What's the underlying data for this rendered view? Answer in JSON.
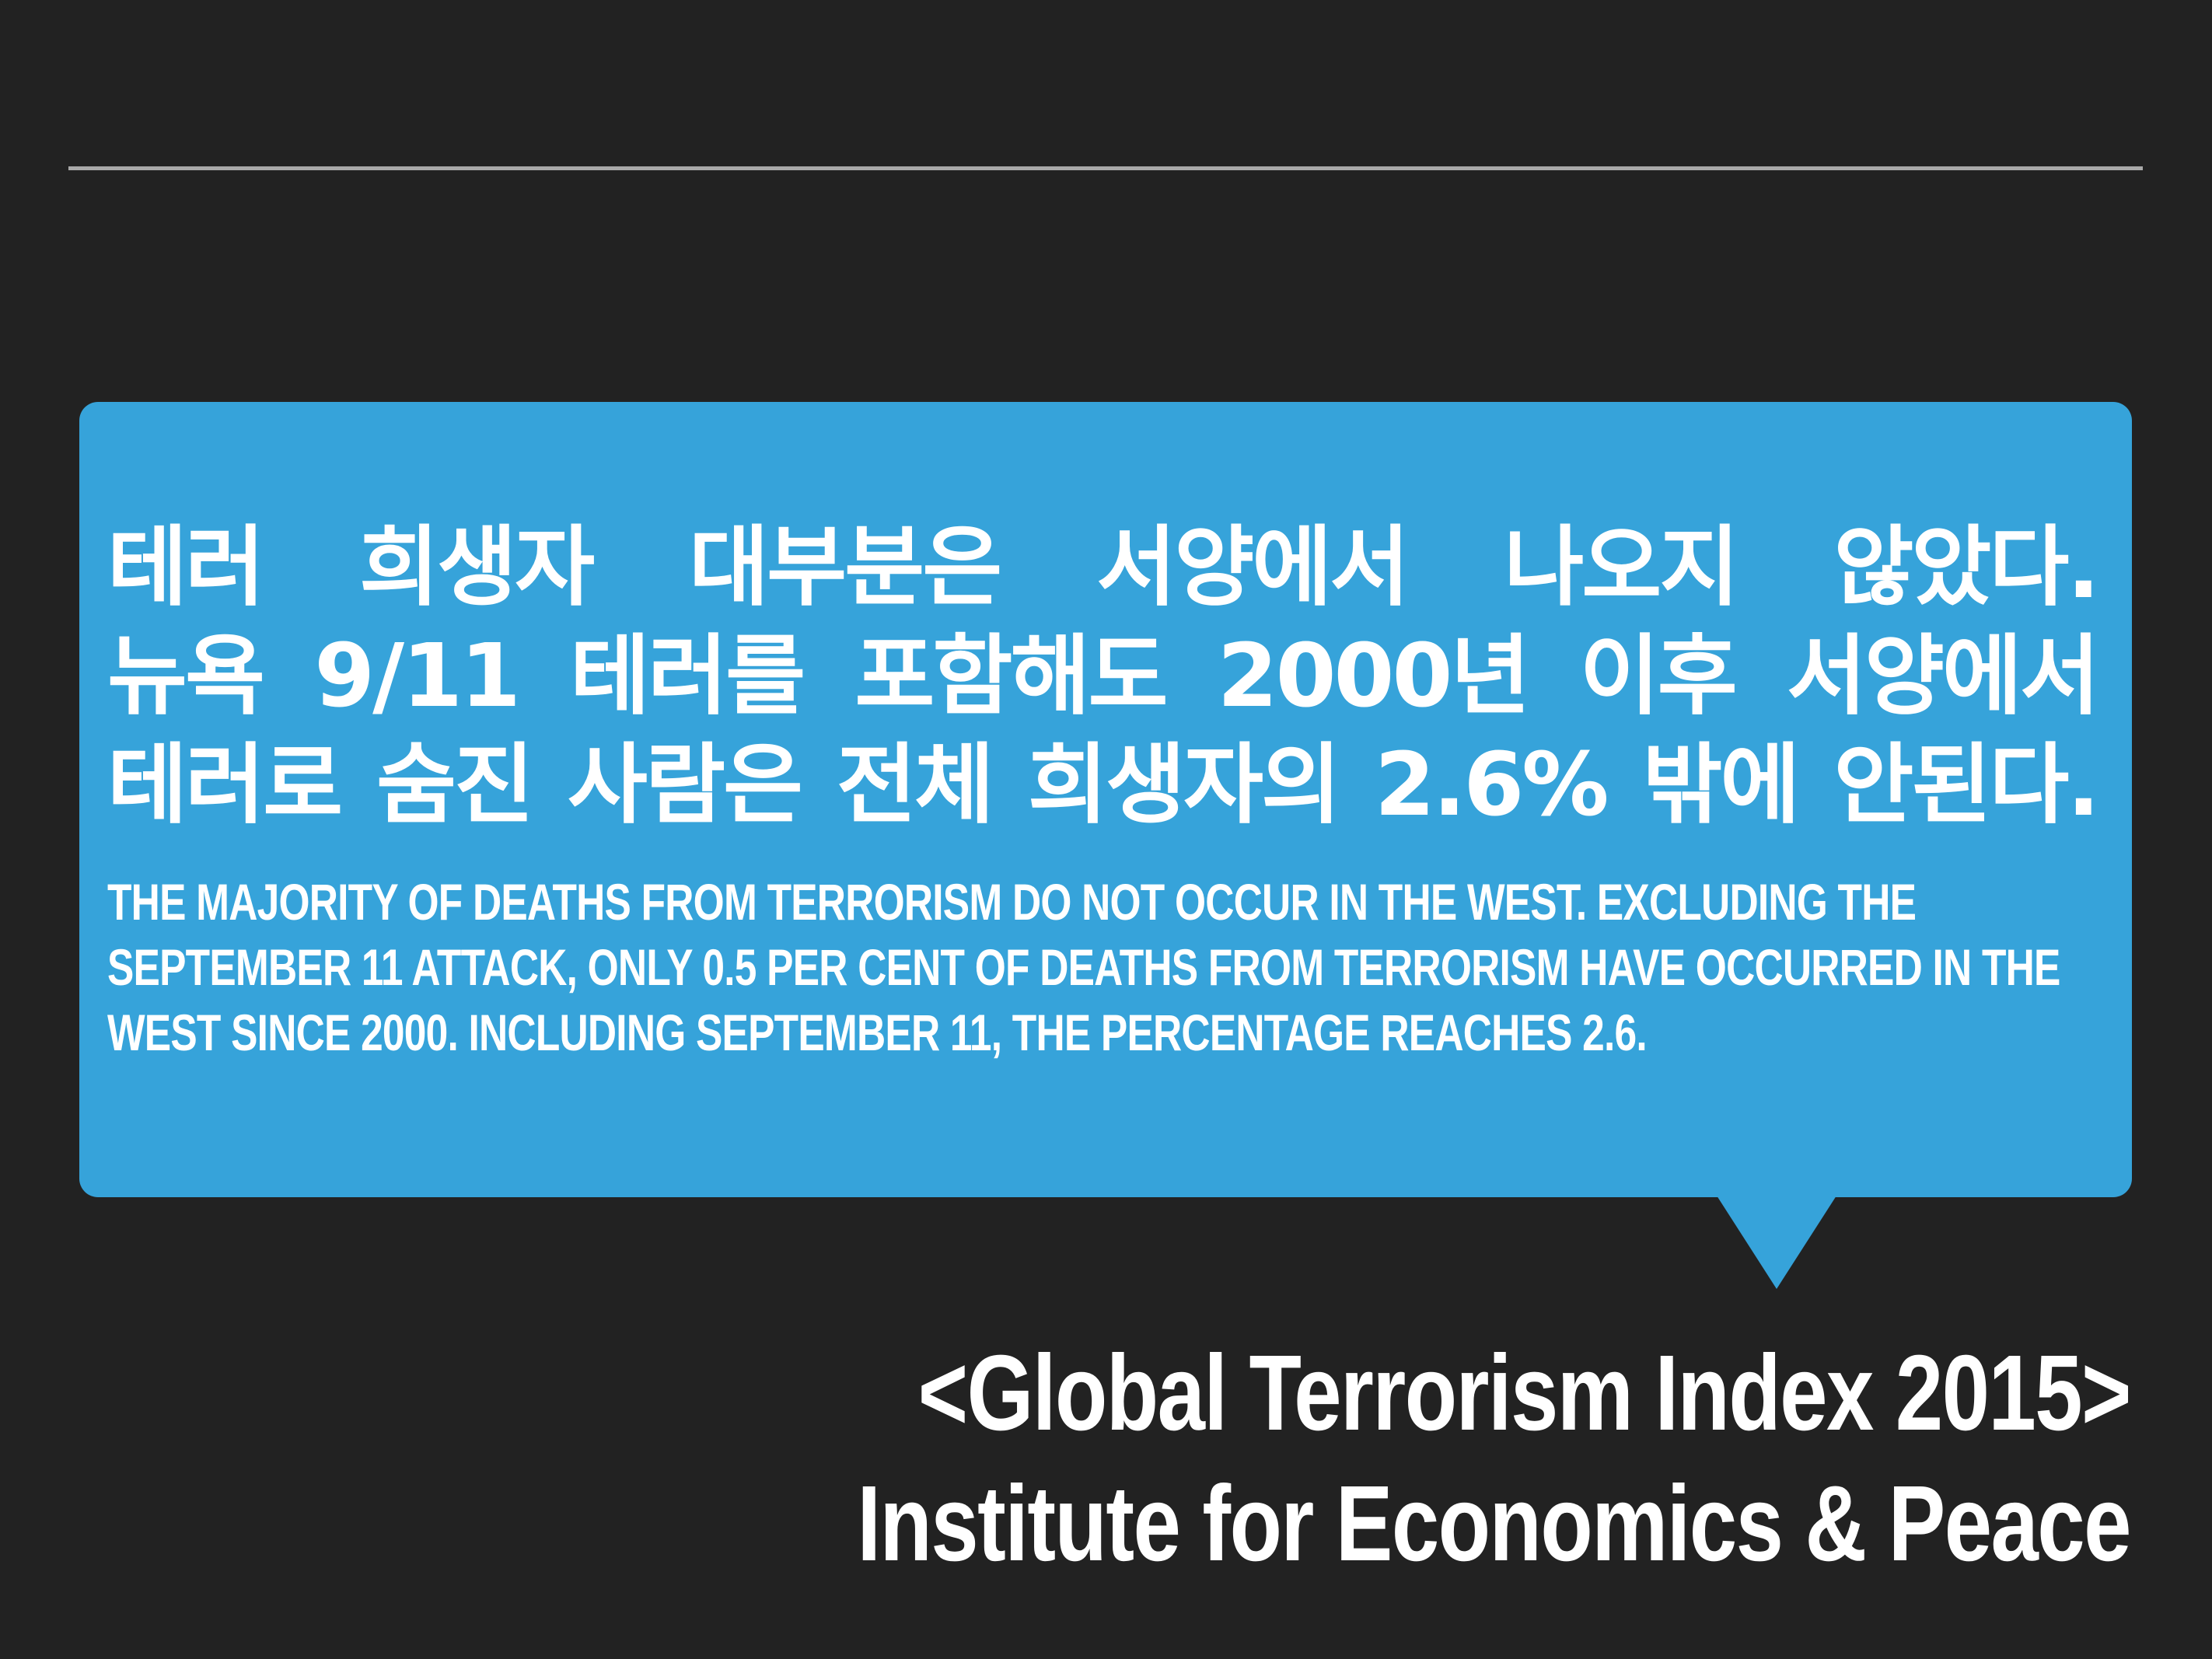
{
  "colors": {
    "background": "#222222",
    "rule": "#a9a9a9",
    "bubble": "#36a3da",
    "text": "#ffffff"
  },
  "korean_lines": [
    "테러 희생자 대부분은 서양에서 나오지 않았다.",
    "뉴욕 9/11 테러를 포함해도 2000년 이후 서양에서",
    "테러로 숨진 사람은 전체 희생자의 2.6% 밖에 안된다."
  ],
  "english_lines": [
    "THE MAJORITY OF DEATHS FROM TERRORISM DO NOT OCCUR IN THE WEST. EXCLUDING THE",
    "SEPTEMBER 11 ATTACK, ONLY 0.5 PER CENT OF DEATHS FROM TERRORISM HAVE OCCURRED IN THE",
    "WEST SINCE 2000. INCLUDING SEPTEMBER 11, THE PERCENTAGE REACHES 2.6."
  ],
  "source": {
    "line1": "<Global Terrorism Index 2015>",
    "line2": "Institute for  Economics & Peace"
  }
}
